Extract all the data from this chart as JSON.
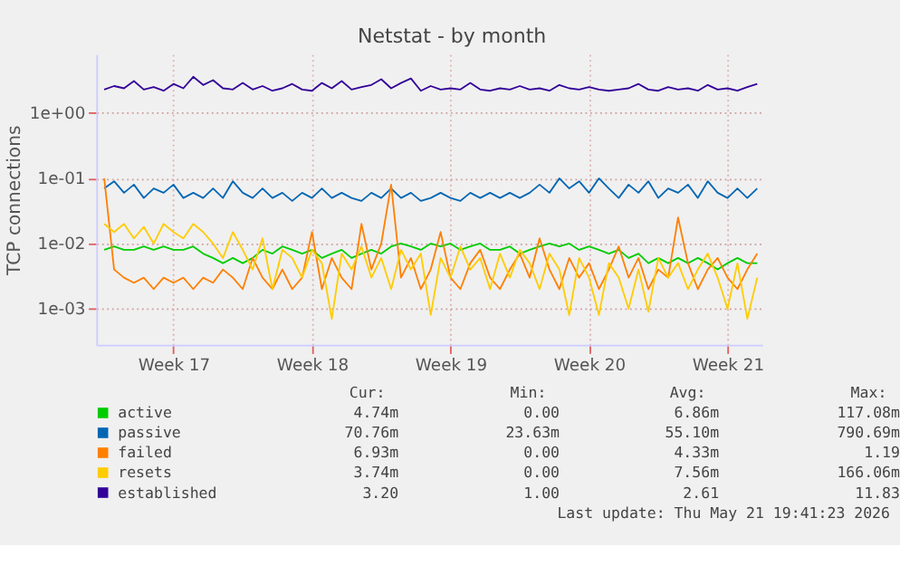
{
  "chart_data": {
    "type": "line",
    "title": "Netstat - by month",
    "ylabel": "TCP connections",
    "log": "y",
    "grid": true,
    "legend": "bottom",
    "line_style": "solid",
    "marker": "none",
    "ylim": [
      0.00028,
      8
    ],
    "yticks": [
      {
        "value": 0.001,
        "label": "1e-03"
      },
      {
        "value": 0.01,
        "label": "1e-02"
      },
      {
        "value": 0.1,
        "label": "1e-01"
      },
      {
        "value": 1,
        "label": "1e+00"
      }
    ],
    "categories": [
      null,
      null,
      null,
      null,
      null,
      null,
      null,
      "Week 17",
      null,
      null,
      null,
      null,
      null,
      null,
      null,
      null,
      null,
      null,
      null,
      null,
      null,
      "Week 18",
      null,
      null,
      null,
      null,
      null,
      null,
      null,
      null,
      null,
      null,
      null,
      null,
      null,
      "Week 19",
      null,
      null,
      null,
      null,
      null,
      null,
      null,
      null,
      null,
      null,
      null,
      null,
      null,
      "Week 20",
      null,
      null,
      null,
      null,
      null,
      null,
      null,
      null,
      null,
      null,
      null,
      null,
      null,
      "Week 21",
      null,
      null,
      null
    ],
    "series": [
      {
        "name": "active",
        "color": "#00cc00",
        "values": [
          0.008,
          0.009,
          0.008,
          0.008,
          0.009,
          0.008,
          0.009,
          0.008,
          0.008,
          0.009,
          0.007,
          0.006,
          0.005,
          0.006,
          0.005,
          0.006,
          0.008,
          0.007,
          0.009,
          0.008,
          0.007,
          0.008,
          0.006,
          0.007,
          0.008,
          0.006,
          0.007,
          0.008,
          0.007,
          0.009,
          0.01,
          0.009,
          0.008,
          0.01,
          0.009,
          0.01,
          0.008,
          0.009,
          0.01,
          0.008,
          0.008,
          0.009,
          0.007,
          0.008,
          0.009,
          0.01,
          0.009,
          0.01,
          0.008,
          0.009,
          0.008,
          0.007,
          0.008,
          0.006,
          0.007,
          0.005,
          0.006,
          0.005,
          0.006,
          0.005,
          0.006,
          0.005,
          0.004,
          0.005,
          0.006,
          0.005,
          0.005
        ]
      },
      {
        "name": "passive",
        "color": "#0066b3",
        "values": [
          0.07,
          0.09,
          0.06,
          0.08,
          0.05,
          0.07,
          0.06,
          0.08,
          0.05,
          0.06,
          0.05,
          0.07,
          0.05,
          0.09,
          0.06,
          0.05,
          0.07,
          0.05,
          0.06,
          0.045,
          0.06,
          0.05,
          0.07,
          0.05,
          0.06,
          0.05,
          0.045,
          0.06,
          0.05,
          0.07,
          0.05,
          0.06,
          0.045,
          0.05,
          0.06,
          0.05,
          0.045,
          0.06,
          0.05,
          0.06,
          0.05,
          0.06,
          0.05,
          0.06,
          0.08,
          0.06,
          0.1,
          0.07,
          0.09,
          0.06,
          0.1,
          0.07,
          0.05,
          0.08,
          0.06,
          0.09,
          0.05,
          0.07,
          0.06,
          0.08,
          0.05,
          0.09,
          0.06,
          0.05,
          0.07,
          0.05,
          0.07
        ]
      },
      {
        "name": "failed",
        "color": "#ff8000",
        "values": [
          0.1,
          0.004,
          0.003,
          0.0025,
          0.003,
          0.002,
          0.003,
          0.0025,
          0.003,
          0.002,
          0.003,
          0.0025,
          0.004,
          0.003,
          0.002,
          0.006,
          0.003,
          0.002,
          0.004,
          0.002,
          0.003,
          0.015,
          0.002,
          0.006,
          0.003,
          0.002,
          0.02,
          0.004,
          0.01,
          0.08,
          0.003,
          0.006,
          0.002,
          0.004,
          0.015,
          0.003,
          0.002,
          0.005,
          0.008,
          0.003,
          0.002,
          0.004,
          0.007,
          0.003,
          0.012,
          0.004,
          0.002,
          0.006,
          0.003,
          0.005,
          0.002,
          0.004,
          0.009,
          0.003,
          0.006,
          0.002,
          0.004,
          0.003,
          0.025,
          0.005,
          0.002,
          0.004,
          0.006,
          0.003,
          0.002,
          0.004,
          0.007
        ]
      },
      {
        "name": "resets",
        "color": "#ffcc00",
        "values": [
          0.02,
          0.015,
          0.02,
          0.012,
          0.018,
          0.01,
          0.02,
          0.015,
          0.012,
          0.02,
          0.015,
          0.01,
          0.006,
          0.015,
          0.008,
          0.004,
          0.012,
          0.002,
          0.008,
          0.006,
          0.003,
          0.008,
          0.005,
          0.0007,
          0.007,
          0.004,
          0.009,
          0.003,
          0.006,
          0.002,
          0.008,
          0.004,
          0.007,
          0.0008,
          0.006,
          0.003,
          0.009,
          0.004,
          0.006,
          0.002,
          0.007,
          0.003,
          0.008,
          0.005,
          0.002,
          0.007,
          0.004,
          0.0008,
          0.006,
          0.003,
          0.0008,
          0.005,
          0.003,
          0.001,
          0.004,
          0.0009,
          0.006,
          0.003,
          0.005,
          0.002,
          0.004,
          0.007,
          0.003,
          0.001,
          0.005,
          0.0007,
          0.003
        ]
      },
      {
        "name": "established",
        "color": "#330099",
        "values": [
          2.3,
          2.6,
          2.4,
          3.1,
          2.3,
          2.5,
          2.2,
          2.8,
          2.4,
          3.6,
          2.7,
          3.2,
          2.4,
          2.3,
          2.9,
          2.3,
          2.6,
          2.2,
          2.4,
          2.8,
          2.3,
          2.2,
          2.9,
          2.4,
          3.1,
          2.3,
          2.5,
          2.7,
          3.3,
          2.4,
          2.9,
          3.4,
          2.2,
          2.6,
          2.3,
          2.4,
          2.3,
          2.9,
          2.3,
          2.2,
          2.4,
          2.3,
          2.6,
          2.3,
          2.4,
          2.2,
          2.7,
          2.4,
          2.3,
          2.5,
          2.3,
          2.2,
          2.3,
          2.4,
          2.8,
          2.3,
          2.2,
          2.5,
          2.3,
          2.4,
          2.2,
          2.7,
          2.3,
          2.4,
          2.2,
          2.5,
          2.8
        ]
      }
    ],
    "annotations": [
      "Cur:",
      "Min:",
      "Avg:",
      "Max:",
      "4.74m",
      "0.00",
      "6.86m",
      "117.08m",
      "70.76m",
      "23.63m",
      "55.10m",
      "790.69m",
      "6.93m",
      "0.00",
      "4.33m",
      "1.19",
      "3.74m",
      "0.00",
      "7.56m",
      "166.06m",
      "3.20",
      "1.00",
      "2.61",
      "11.83",
      "Last update: Thu May 21 19:41:23 2026"
    ]
  }
}
